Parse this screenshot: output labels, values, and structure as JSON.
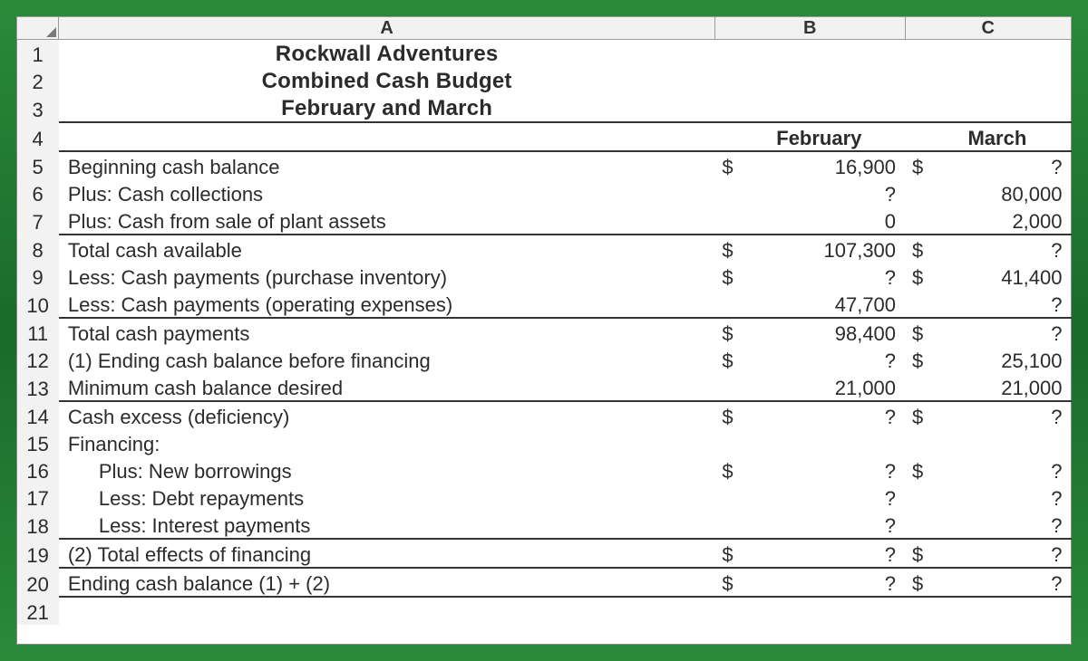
{
  "colors": {
    "frame_gradient_top": "#2a8a3a",
    "frame_gradient_mid": "#1a6a2a",
    "frame_gradient_bot": "#2a8a3a",
    "sheet_bg": "#ffffff",
    "header_bg": "#f2f2f2",
    "header_border": "#9a9a9a",
    "grid_light": "#d8d8d8",
    "grid_v": "#bfbfbf",
    "text": "#2b2b2b",
    "heavy_line": "#333333"
  },
  "typography": {
    "family": "Myriad Pro / Arial Narrow",
    "title_size_pt": 18,
    "body_size_pt": 16,
    "title_weight": 700,
    "body_weight": 400
  },
  "columns": {
    "headers": [
      "A",
      "B",
      "C"
    ]
  },
  "title": {
    "line1": "Rockwall Adventures",
    "line2": "Combined Cash Budget",
    "line3": "February and March"
  },
  "period_headers": {
    "b": "February",
    "c": "March"
  },
  "rows": [
    {
      "n": 5,
      "label": "Beginning cash balance",
      "bS": "$",
      "bV": "16,900",
      "cS": "$",
      "cV": "?"
    },
    {
      "n": 6,
      "label": "Plus: Cash collections",
      "bS": "",
      "bV": "?",
      "cS": "",
      "cV": "80,000"
    },
    {
      "n": 7,
      "label": "Plus: Cash from sale of plant assets",
      "bS": "",
      "bV": "0",
      "cS": "",
      "cV": "2,000",
      "uline": true
    },
    {
      "n": 8,
      "label": "Total cash available",
      "bS": "$",
      "bV": "107,300",
      "cS": "$",
      "cV": "?"
    },
    {
      "n": 9,
      "label": "Less: Cash payments (purchase inventory)",
      "bS": "$",
      "bV": "?",
      "cS": "$",
      "cV": "41,400"
    },
    {
      "n": 10,
      "label": "Less: Cash payments (operating expenses)",
      "bS": "",
      "bV": "47,700",
      "cS": "",
      "cV": "?",
      "uline": true
    },
    {
      "n": 11,
      "label": "Total cash payments",
      "bS": "$",
      "bV": "98,400",
      "cS": "$",
      "cV": "?"
    },
    {
      "n": 12,
      "label": "(1) Ending cash balance before financing",
      "bS": "$",
      "bV": "?",
      "cS": "$",
      "cV": "25,100"
    },
    {
      "n": 13,
      "label": "Minimum cash balance desired",
      "bS": "",
      "bV": "21,000",
      "cS": "",
      "cV": "21,000",
      "uline": true
    },
    {
      "n": 14,
      "label": "Cash excess (deficiency)",
      "bS": "$",
      "bV": "?",
      "cS": "$",
      "cV": "?"
    },
    {
      "n": 15,
      "label": "Financing:",
      "bS": "",
      "bV": "",
      "cS": "",
      "cV": ""
    },
    {
      "n": 16,
      "label": "Plus: New borrowings",
      "indent": true,
      "bS": "$",
      "bV": "?",
      "cS": "$",
      "cV": "?"
    },
    {
      "n": 17,
      "label": "Less: Debt repayments",
      "indent": true,
      "bS": "",
      "bV": "?",
      "cS": "",
      "cV": "?"
    },
    {
      "n": 18,
      "label": "Less: Interest payments",
      "indent": true,
      "bS": "",
      "bV": "?",
      "cS": "",
      "cV": "?",
      "uline": true
    },
    {
      "n": 19,
      "label": "(2) Total effects of financing",
      "bS": "$",
      "bV": "?",
      "cS": "$",
      "cV": "?",
      "uline": true
    },
    {
      "n": 20,
      "label": "Ending cash balance (1) + (2)",
      "bS": "$",
      "bV": "?",
      "cS": "$",
      "cV": "?",
      "uline": true
    },
    {
      "n": 21,
      "label": "",
      "bS": "",
      "bV": "",
      "cS": "",
      "cV": ""
    }
  ]
}
